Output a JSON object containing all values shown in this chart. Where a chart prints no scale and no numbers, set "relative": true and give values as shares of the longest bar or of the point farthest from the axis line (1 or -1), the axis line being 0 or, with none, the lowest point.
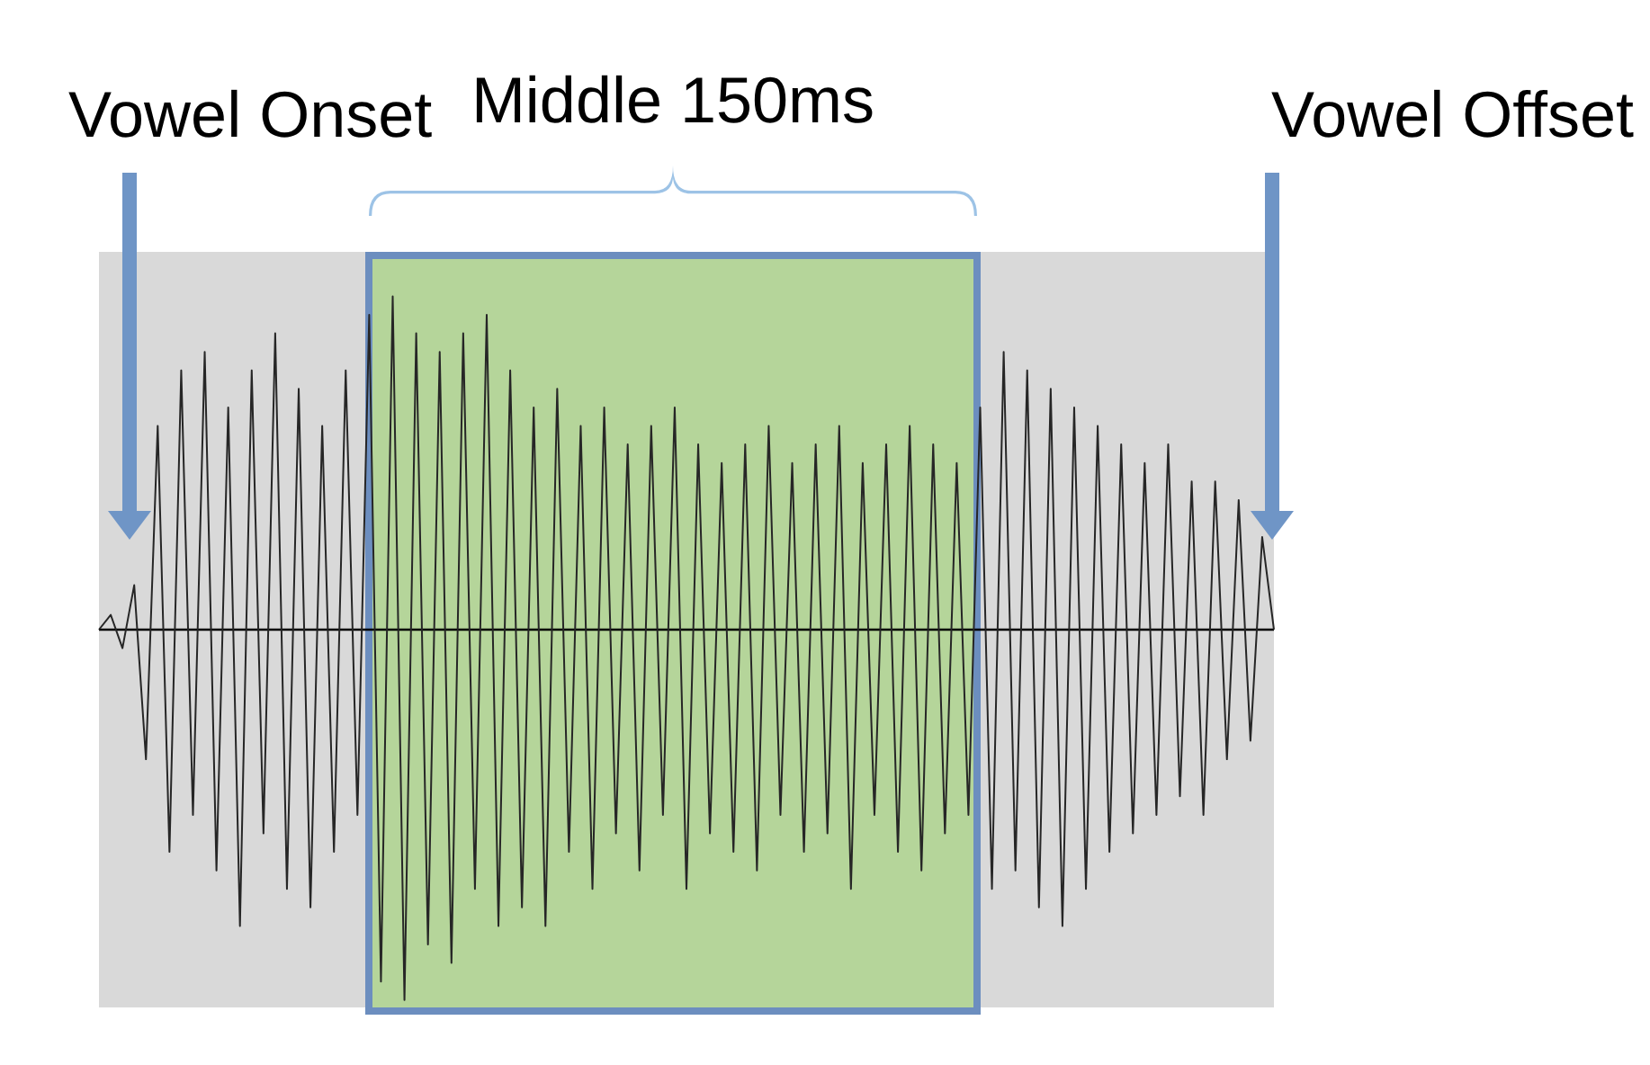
{
  "chart_data": {
    "type": "line",
    "relative": true,
    "categories": [
      null,
      null,
      null,
      null,
      null,
      null,
      null,
      null,
      null,
      null,
      null,
      null,
      null,
      null,
      null,
      null,
      null,
      null,
      null,
      null,
      null,
      null,
      null,
      null,
      null,
      null,
      null,
      null,
      null,
      null,
      null,
      null,
      null,
      null,
      null,
      null,
      null,
      null,
      null,
      null,
      null,
      null,
      null,
      null,
      null,
      null,
      null,
      null,
      null,
      null,
      null,
      null,
      null,
      null,
      null,
      null,
      null,
      null,
      null,
      null,
      null,
      null,
      null,
      null,
      null,
      null,
      null,
      null,
      null,
      null,
      null,
      null,
      null,
      null,
      null,
      null,
      null,
      null,
      null,
      null,
      null,
      null,
      null,
      null,
      null,
      null,
      null,
      null,
      null,
      null,
      null,
      null,
      null,
      null,
      null,
      null,
      null,
      null,
      null,
      null,
      null
    ],
    "series": [
      {
        "color": "#262626",
        "values": [
          0,
          0.04,
          -0.05,
          0.12,
          -0.35,
          0.55,
          -0.6,
          0.7,
          -0.5,
          0.75,
          -0.65,
          0.6,
          -0.8,
          0.7,
          -0.55,
          0.8,
          -0.7,
          0.65,
          -0.75,
          0.55,
          -0.6,
          0.7,
          -0.5,
          0.85,
          -0.95,
          0.9,
          -1,
          0.8,
          -0.85,
          0.75,
          -0.9,
          0.8,
          -0.7,
          0.85,
          -0.8,
          0.7,
          -0.75,
          0.6,
          -0.8,
          0.65,
          -0.6,
          0.55,
          -0.7,
          0.6,
          -0.55,
          0.5,
          -0.65,
          0.55,
          -0.5,
          0.6,
          -0.7,
          0.5,
          -0.55,
          0.45,
          -0.6,
          0.5,
          -0.65,
          0.55,
          -0.5,
          0.45,
          -0.6,
          0.5,
          -0.55,
          0.55,
          -0.7,
          0.45,
          -0.5,
          0.5,
          -0.6,
          0.55,
          -0.65,
          0.5,
          -0.55,
          0.45,
          -0.5,
          0.6,
          -0.7,
          0.75,
          -0.65,
          0.7,
          -0.75,
          0.65,
          -0.8,
          0.6,
          -0.7,
          0.55,
          -0.6,
          0.5,
          -0.55,
          0.45,
          -0.5,
          0.5,
          -0.45,
          0.4,
          -0.5,
          0.4,
          -0.35,
          0.35,
          -0.3,
          0.25,
          0
        ]
      }
    ],
    "ref_lines": [
      {
        "axis": "y",
        "value": 0,
        "color": "#000000"
      }
    ],
    "annotations": [
      "Vowel Onset",
      "Middle 150ms",
      "Vowel Offset"
    ]
  }
}
